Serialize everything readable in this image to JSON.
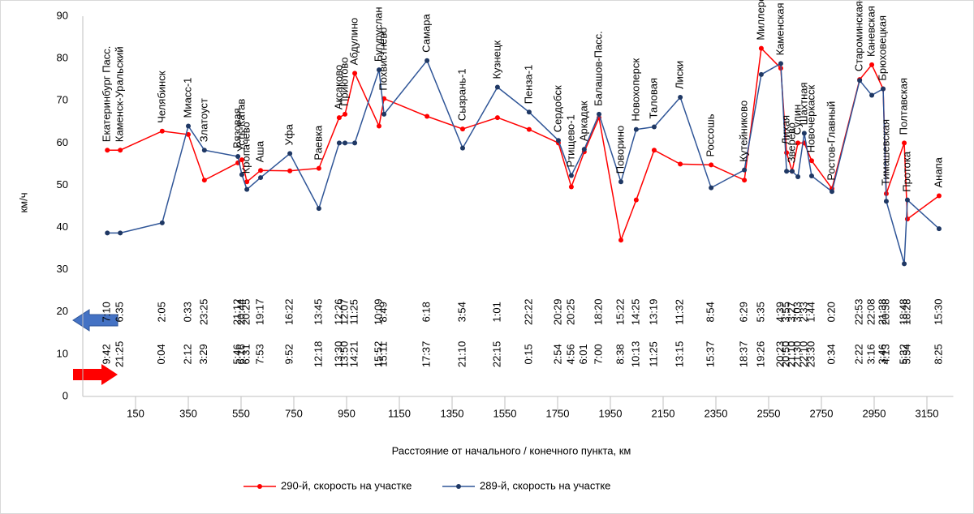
{
  "chart_data": {
    "type": "line",
    "x_label": "Расстояние от начального / конечного пункта, км",
    "y_label": "км/ч",
    "xlim": [
      -50,
      3250
    ],
    "xticks": [
      150,
      350,
      550,
      750,
      950,
      1150,
      1350,
      1550,
      1750,
      1950,
      2150,
      2350,
      2550,
      2750,
      2950,
      3150
    ],
    "ylim": [
      0,
      90
    ],
    "yticks": [
      0,
      10,
      20,
      30,
      40,
      50,
      60,
      70,
      80,
      90
    ],
    "grid": false,
    "legend": "bottom",
    "x": [
      43,
      92,
      251,
      350,
      411,
      538,
      553,
      572,
      624,
      735,
      845,
      922,
      944,
      981,
      1073,
      1092,
      1255,
      1390,
      1522,
      1642,
      1753,
      1802,
      1851,
      1907,
      1990,
      2048,
      2116,
      2215,
      2332,
      2458,
      2522,
      2596,
      2618,
      2639,
      2661,
      2685,
      2713,
      2790,
      2895,
      2941,
      2984,
      2996,
      3064,
      3076,
      3196
    ],
    "stations": [
      "Екатеринбург Пасс.",
      "Каменск-Уральский",
      "Челябинск",
      "Миасс-1",
      "Златоуст",
      "Вязовая",
      "Усть-Катав",
      "Кропачево",
      "Аша",
      "Уфа",
      "Раевка",
      "Аксаково",
      "Приютово",
      "Абдулино",
      "Бугуруслан",
      "Похвистнево",
      "Самара",
      "Сызрань-1",
      "Кузнецк",
      "Пенза-1",
      "Сердобск",
      "Ртищево-1",
      "Аркадак",
      "Балашов-Пасс.",
      "Поворино",
      "Новохоперск",
      "Таловая",
      "Лиски",
      "Россошь",
      "Кутейниково",
      "Миллерово",
      "Каменская",
      "Лихая",
      "Зверево",
      "Сулин",
      "Шахтная",
      "Новочеркасск",
      "Ростов-Главный",
      "Староминская-Тимашевская",
      "Каневская",
      "Брюховецкая",
      "Тимашевская",
      "Полтавская",
      "Протока",
      "Анапа"
    ],
    "series": [
      {
        "name": "290-й, скорость на участке",
        "color": "#ff0000",
        "values": [
          58.3,
          58.3,
          62.8,
          62,
          51.2,
          55.3,
          56,
          50.8,
          53.5,
          53.4,
          54,
          66,
          66.8,
          76.5,
          64,
          70.5,
          66.3,
          63.3,
          66,
          63.2,
          60,
          49.6,
          57.9,
          66,
          37,
          46.5,
          58.3,
          55,
          54.8,
          51.2,
          82.4,
          77.7,
          57.7,
          53.3,
          60,
          60,
          55.8,
          49.2,
          75,
          78.5,
          72.8,
          48,
          60,
          42,
          47.5
        ],
        "time_labels": [
          "9:42",
          "21:25",
          "0:04",
          "2:12",
          "3:29",
          "5:46",
          "6:16",
          "6:31",
          "7:53",
          "9:52",
          "12:18",
          "13:30",
          "13:50",
          "14:21",
          "15:52",
          "15:11",
          "17:37",
          "21:10",
          "22:15",
          "0:15",
          "2:54",
          "4:56",
          "6:01",
          "7:00",
          "8:38",
          "10:13",
          "11:25",
          "13:15",
          "15:37",
          "18:37",
          "19:26",
          "20:23",
          "20:50",
          "21:10",
          "21:30",
          "22:10",
          "23:30",
          "0:34",
          "2:22",
          "3:16",
          "3:46",
          "4:13",
          "5:32",
          "5:54",
          "8:25"
        ],
        "time_row": 10
      },
      {
        "name": "289-й, скорость на участке",
        "color": "#2f5597",
        "values": [
          38.7,
          38.7,
          41.1,
          64,
          58.3,
          56.8,
          52.5,
          49,
          51.8,
          57.5,
          44.5,
          60,
          60,
          60,
          77.3,
          66.8,
          79.5,
          58.8,
          73.2,
          67.3,
          60.6,
          52.3,
          58.5,
          66.8,
          50.8,
          63.2,
          63.8,
          70.8,
          49.4,
          53.6,
          76.2,
          78.8,
          53.3,
          53.3,
          52,
          62.3,
          52.2,
          48.5,
          74.8,
          71.3,
          72.8,
          46.2,
          31.4,
          46.5,
          39.7
        ],
        "time_labels": [
          "7:10",
          "6:35",
          "2:05",
          "0:33",
          "23:25",
          "21:12",
          "20:44",
          "20:25",
          "19:17",
          "16:22",
          "13:45",
          "12:26",
          "12:07",
          "11:25",
          "10:09",
          "8:49",
          "6:18",
          "3:54",
          "1:01",
          "22:22",
          "20:29",
          "20:25",
          null,
          "18:20",
          "15:22",
          "14:25",
          "13:19",
          "11:32",
          "8:54",
          "6:29",
          "5:35",
          "4:39",
          "3:55",
          "3:27",
          "3:03",
          "2:33",
          "1:44",
          "0:20",
          "22:53",
          "22:08",
          "21:38",
          "20:58",
          "18:48",
          "18:28",
          "15:30"
        ],
        "time_row": 20
      }
    ]
  }
}
